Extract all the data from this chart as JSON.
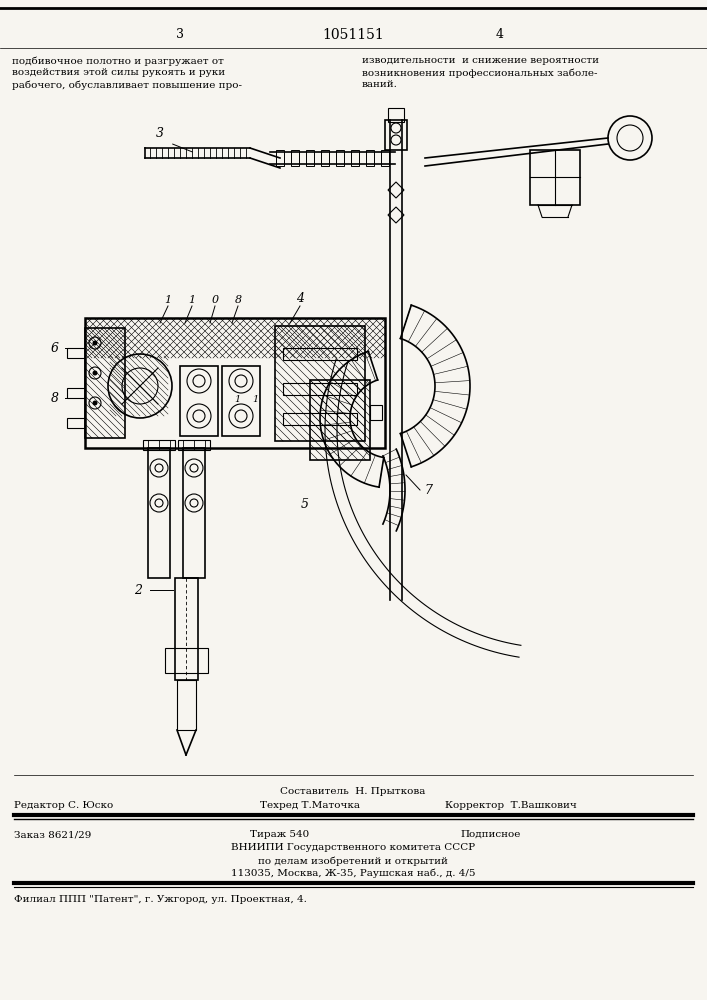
{
  "page_color": "#f7f5f0",
  "title_number": "1051151",
  "page_left": "3",
  "page_right": "4",
  "top_left_text": "подбивочное полотно и разгружает от\nвоздействия этой силы рукоять и руки\nрабочего, обуславливает повышение про-",
  "top_right_text": "изводительности  и снижение вероятности\nвозникновения профессиональных заболе-\nваний.",
  "footer_sostavitel": "Составитель  Н. Прыткова",
  "footer_redaktor": "Редактор С. Юско",
  "footer_tehred": "Техред Т.Маточка",
  "footer_korrektor": "Корректор  Т.Вашкович",
  "footer_zakaz": "Заказ 8621/29",
  "footer_tirazh": "Тираж 540",
  "footer_podpisnoe": "Подписное",
  "footer_vniiipi": "ВНИИПИ Государственного комитета СССР",
  "footer_po_delam": "по делам изобретений и открытий",
  "footer_address": "113035, Москва, Ж-35, Раушская наб., д. 4/5",
  "footer_filial": "Филиал ППП \"Патент\", г. Ужгород, ул. Проектная, 4."
}
